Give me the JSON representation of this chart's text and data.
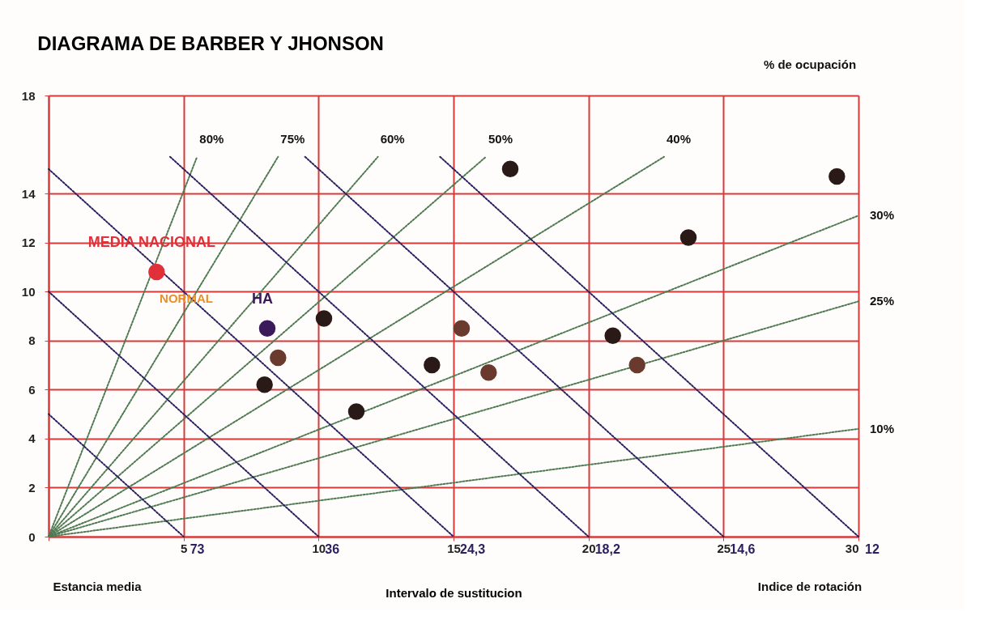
{
  "chart_data": {
    "type": "scatter",
    "title": "DIAGRAMA DE BARBER Y JHONSON",
    "xlabel": "Intervalo de sustitucion",
    "xlim": [
      0,
      30
    ],
    "ylim": [
      0,
      18
    ],
    "xticks": [
      {
        "value": 0,
        "label": null
      },
      5,
      10,
      15,
      20,
      25,
      30
    ],
    "yticks": [
      0,
      2,
      4,
      6,
      8,
      10,
      12,
      14,
      18
    ],
    "grid": true,
    "annotations": [
      "% de ocupación",
      "Indice de rotación",
      "NORMAL",
      "Estancia media"
    ],
    "series": [
      {
        "type": "line",
        "name": "80%",
        "color": "#4f7a52",
        "line_style": "dotted",
        "x": [
          0,
          5.5
        ],
        "values": [
          0,
          15.5
        ]
      },
      {
        "type": "line",
        "name": "75%",
        "color": "#4f7a52",
        "line_style": "dotted",
        "x": [
          0,
          8.5
        ],
        "values": [
          0,
          15.5
        ]
      },
      {
        "type": "line",
        "name": "60%",
        "color": "#4f7a52",
        "line_style": "dotted",
        "x": [
          0,
          12.2
        ],
        "values": [
          0,
          15.5
        ]
      },
      {
        "type": "line",
        "name": "50%",
        "color": "#4f7a52",
        "line_style": "dotted",
        "x": [
          0,
          16.2
        ],
        "values": [
          0,
          15.5
        ]
      },
      {
        "type": "line",
        "name": "40%",
        "color": "#4f7a52",
        "line_style": "dotted",
        "x": [
          0,
          22.8
        ],
        "values": [
          0,
          15.5
        ]
      },
      {
        "type": "line",
        "name": "30%",
        "color": "#4f7a52",
        "line_style": "dotted",
        "x": [
          0,
          30
        ],
        "values": [
          0,
          13.1
        ]
      },
      {
        "type": "line",
        "name": "25%",
        "color": "#4f7a52",
        "line_style": "dotted",
        "x": [
          0,
          30
        ],
        "values": [
          0,
          9.6
        ]
      },
      {
        "type": "line",
        "name": "10%",
        "color": "#4f7a52",
        "line_style": "dotted",
        "x": [
          0,
          30
        ],
        "values": [
          0,
          4.4
        ]
      },
      {
        "type": "line",
        "name": "73",
        "color": "#2b2160",
        "line_style": "dotted",
        "x": [
          0,
          5
        ],
        "values": [
          5,
          0
        ]
      },
      {
        "type": "line",
        "name": "36",
        "color": "#2b2160",
        "line_style": "dotted",
        "x": [
          0,
          10
        ],
        "values": [
          10,
          0
        ]
      },
      {
        "type": "line",
        "name": "24,3",
        "color": "#2b2160",
        "line_style": "dotted",
        "x": [
          0,
          15
        ],
        "values": [
          15,
          0
        ]
      },
      {
        "type": "line",
        "name": "18,2",
        "color": "#2b2160",
        "line_style": "dotted",
        "x": [
          4.5,
          20
        ],
        "values": [
          15.5,
          0
        ]
      },
      {
        "type": "line",
        "name": "14,6",
        "color": "#2b2160",
        "line_style": "dotted",
        "x": [
          9.5,
          25
        ],
        "values": [
          15.5,
          0
        ]
      },
      {
        "type": "line",
        "name": "12",
        "color": "#2b2160",
        "line_style": "dotted",
        "x": [
          14.5,
          30
        ],
        "values": [
          15.5,
          0
        ]
      },
      {
        "marker": "circle",
        "color": "#2a1a17",
        "x": [
          17.1,
          29.2,
          23.7,
          10.2,
          20.9,
          14.2,
          8.0,
          11.4
        ],
        "values": [
          15.0,
          14.7,
          12.2,
          8.9,
          8.2,
          7.0,
          6.2,
          5.1
        ]
      },
      {
        "marker": "circle",
        "color": "#6b3a2e",
        "x": [
          15.3,
          8.5,
          16.3,
          21.8
        ],
        "values": [
          8.5,
          7.3,
          6.7,
          7.0
        ]
      },
      {
        "marker": "circle",
        "name": "HA",
        "color": "#3b1a5a",
        "x": [
          8.1
        ],
        "values": [
          8.5
        ]
      },
      {
        "marker": "circle",
        "name": "MEDIA NACIONAL",
        "color": "#e0303a",
        "x": [
          4.0
        ],
        "values": [
          10.8
        ]
      }
    ]
  }
}
